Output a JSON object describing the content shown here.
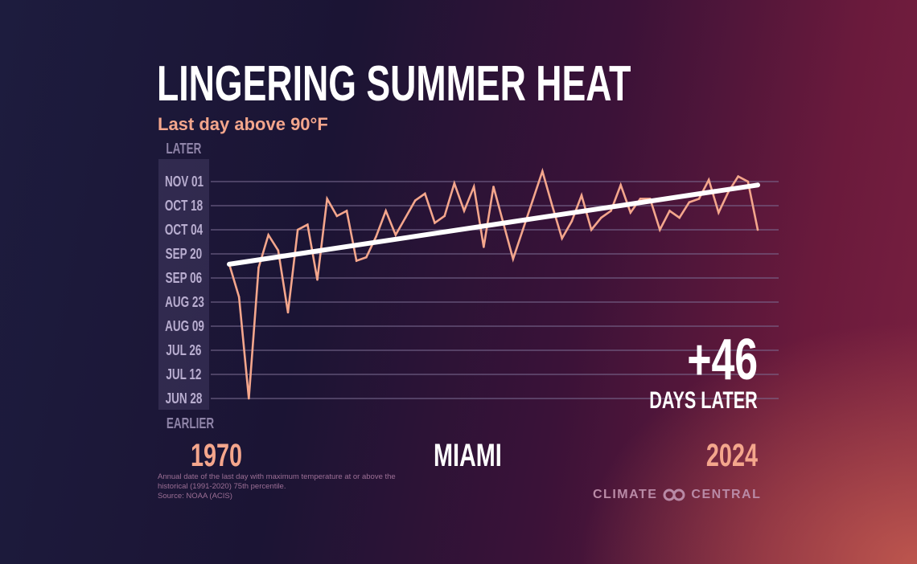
{
  "header": {
    "title": "LINGERING SUMMER HEAT",
    "subtitle": "Last day above 90°F"
  },
  "annotation": {
    "delta": "+46",
    "delta_label": "DAYS LATER"
  },
  "footer": {
    "note": "Annual date of the last day with maximum temperature at or above the historical (1991-2020) 75th percentile.",
    "source": "Source: NOAA (ACIS)",
    "logo_left": "CLIMATE",
    "logo_right": "CENTRAL"
  },
  "colors": {
    "line": "#f4a68c",
    "trend": "#ffffff",
    "grid": "#7d6f95",
    "accent": "#f4a68c"
  },
  "chart_data": {
    "type": "line",
    "title": "LINGERING SUMMER HEAT",
    "subtitle": "Last day above 90°F",
    "location": "MIAMI",
    "x_start_label": "1970",
    "x_end_label": "2024",
    "y_top_label": "LATER",
    "y_bottom_label": "EARLIER",
    "y_ticks": [
      "NOV 01",
      "OCT 18",
      "OCT 04",
      "SEP 20",
      "SEP 06",
      "AUG 23",
      "AUG 09",
      "JUL 26",
      "JUL 12",
      "JUN 28"
    ],
    "y_tick_dates": [
      "11-01",
      "10-18",
      "10-04",
      "09-20",
      "09-06",
      "08-23",
      "08-09",
      "07-26",
      "07-12",
      "06-28"
    ],
    "xlim": [
      1970,
      2024
    ],
    "grid": true,
    "series": [
      {
        "x": [
          1970,
          1971,
          1972,
          1973,
          1974,
          1975,
          1976,
          1977,
          1978,
          1979,
          1980,
          1981,
          1982,
          1983,
          1984,
          1985,
          1986,
          1987,
          1988,
          1989,
          1990,
          1991,
          1992,
          1993,
          1994,
          1995,
          1996,
          1997,
          1998,
          1999,
          2000,
          2001,
          2002,
          2003,
          2004,
          2005,
          2006,
          2007,
          2008,
          2009,
          2010,
          2011,
          2012,
          2013,
          2014,
          2015,
          2016,
          2017,
          2018,
          2019,
          2020,
          2021,
          2022,
          2023,
          2024
        ],
        "dates": [
          "09-14",
          "08-26",
          "06-28",
          "09-12",
          "10-01",
          "09-22",
          "08-17",
          "10-04",
          "10-07",
          "09-05",
          "10-22",
          "10-12",
          "10-15",
          "09-16",
          "09-18",
          "09-30",
          "10-15",
          "10-01",
          "10-11",
          "10-21",
          "10-25",
          "10-08",
          "10-12",
          "10-31",
          "10-15",
          "10-29",
          "09-24",
          "10-29",
          "10-08",
          "09-17",
          "10-04",
          "10-21",
          "11-07",
          "10-18",
          "09-29",
          "10-09",
          "10-24",
          "10-04",
          "10-11",
          "10-15",
          "10-30",
          "10-14",
          "10-22",
          "10-22",
          "10-04",
          "10-15",
          "10-11",
          "10-20",
          "10-22",
          "11-02",
          "10-14",
          "10-26",
          "11-04",
          "11-01",
          "10-04"
        ]
      }
    ],
    "trend": {
      "x": [
        1970,
        2024
      ],
      "dates": [
        "09-14",
        "10-30"
      ],
      "change_days": 46
    }
  }
}
